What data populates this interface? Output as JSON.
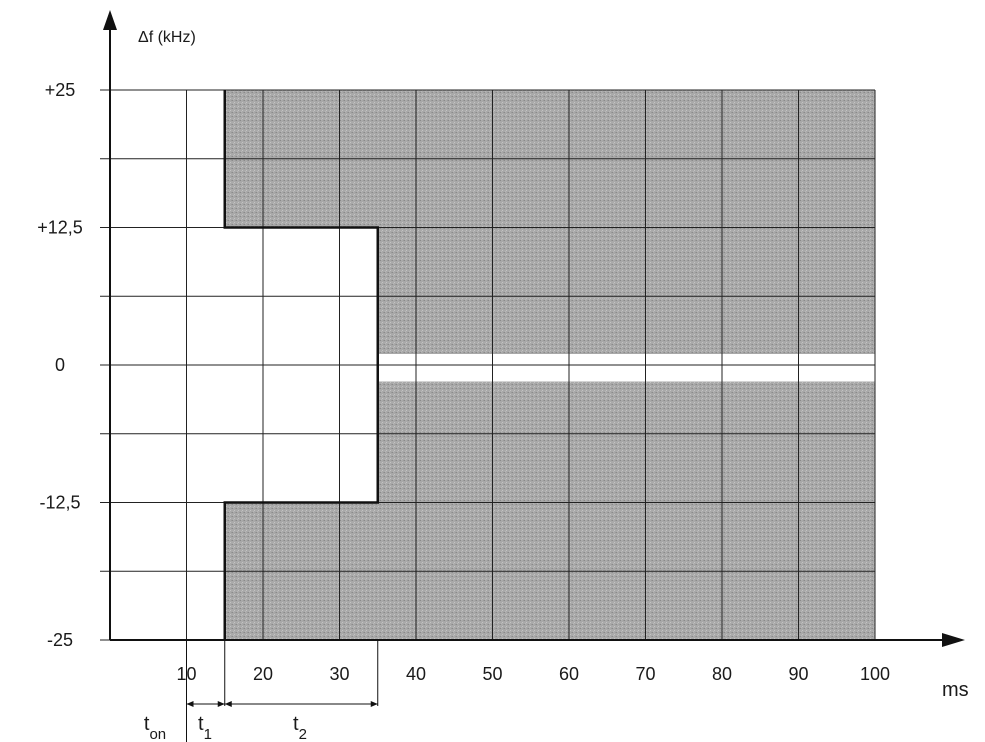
{
  "chart_data": {
    "type": "area",
    "title": "",
    "ylabel": "Δf (kHz)",
    "xlabel": "ms",
    "xlim": [
      0,
      100
    ],
    "ylim": [
      -25,
      25
    ],
    "x_ticks": [
      10,
      20,
      30,
      40,
      50,
      60,
      70,
      80,
      90,
      100
    ],
    "y_ticks": [
      {
        "value": 25,
        "label": "+25"
      },
      {
        "value": 12.5,
        "label": "+12,5"
      },
      {
        "value": 0,
        "label": "0"
      },
      {
        "value": -12.5,
        "label": "-12,5"
      },
      {
        "value": -25,
        "label": "-25"
      }
    ],
    "grid": true,
    "grid_x_step": 10,
    "grid_y_step": 6.25,
    "shaded_regions": [
      {
        "name": "upper",
        "points": [
          [
            15,
            25
          ],
          [
            100,
            25
          ],
          [
            100,
            1
          ],
          [
            35,
            1
          ],
          [
            35,
            12.5
          ],
          [
            15,
            12.5
          ]
        ]
      },
      {
        "name": "lower",
        "points": [
          [
            15,
            -25
          ],
          [
            100,
            -25
          ],
          [
            100,
            -1.5
          ],
          [
            35,
            -1.5
          ],
          [
            35,
            -12.5
          ],
          [
            15,
            -12.5
          ]
        ]
      }
    ],
    "mask_boundary": [
      [
        15,
        25
      ],
      [
        15,
        12.5
      ],
      [
        35,
        12.5
      ],
      [
        35,
        -12.5
      ],
      [
        15,
        -12.5
      ],
      [
        15,
        -25
      ]
    ],
    "shade_color": "#a9a9a9",
    "time_markers": [
      {
        "label": "t",
        "sub": "on",
        "from": 0,
        "to": 10
      },
      {
        "label": "t",
        "sub": "1",
        "from": 10,
        "to": 15
      },
      {
        "label": "t",
        "sub": "2",
        "from": 15,
        "to": 35
      }
    ]
  }
}
